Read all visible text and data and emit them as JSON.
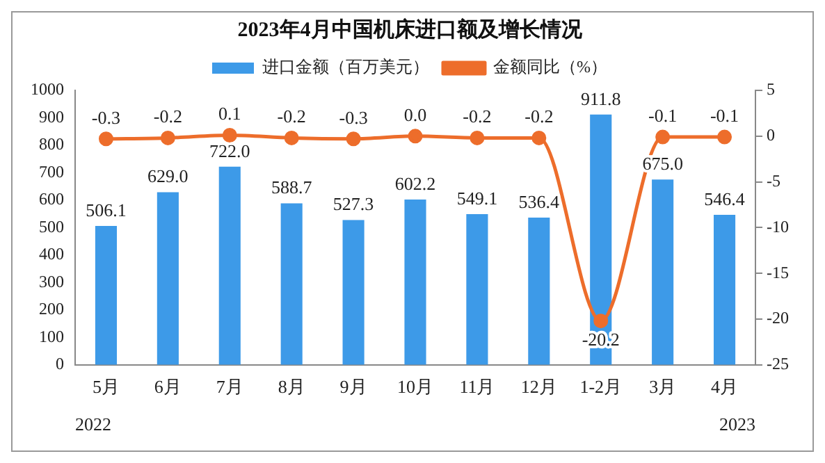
{
  "chart_data": {
    "type": "bar",
    "title": "2023年4月中国机床进口额及增长情况",
    "categories": [
      "5月",
      "6月",
      "7月",
      "8月",
      "9月",
      "10月",
      "11月",
      "12月",
      "1-2月",
      "3月",
      "4月"
    ],
    "series": [
      {
        "name": "进口金额（百万美元）",
        "color": "#3d9ae8",
        "values": [
          506.1,
          629.0,
          722.0,
          588.7,
          527.3,
          602.2,
          549.1,
          536.4,
          911.8,
          675.0,
          546.4
        ],
        "value_labels": [
          "506.1",
          "629.0",
          "722.0",
          "588.7",
          "527.3",
          "602.2",
          "549.1",
          "536.4",
          "911.8",
          "675.0",
          "546.4"
        ]
      },
      {
        "name": "金额同比（%）",
        "type": "line",
        "axis": "y2",
        "color": "#ed6d2b",
        "values": [
          -0.3,
          -0.2,
          0.1,
          -0.2,
          -0.3,
          0.0,
          -0.2,
          -0.2,
          -20.2,
          -0.1,
          -0.1
        ],
        "value_labels": [
          "-0.3",
          "-0.2",
          "0.1",
          "-0.2",
          "-0.3",
          "0.0",
          "-0.2",
          "-0.2",
          "-20.2",
          "-0.1",
          "-0.1"
        ]
      }
    ],
    "ylim": [
      0,
      1000
    ],
    "yticks": [
      0,
      100,
      200,
      300,
      400,
      500,
      600,
      700,
      800,
      900,
      1000
    ],
    "y2lim": [
      -25,
      5
    ],
    "y2ticks": [
      -25,
      -20,
      -15,
      -10,
      -5,
      0,
      5
    ],
    "annotations": [
      "2022",
      "2023"
    ],
    "legend": "top",
    "grid": false,
    "marker": "circle"
  }
}
